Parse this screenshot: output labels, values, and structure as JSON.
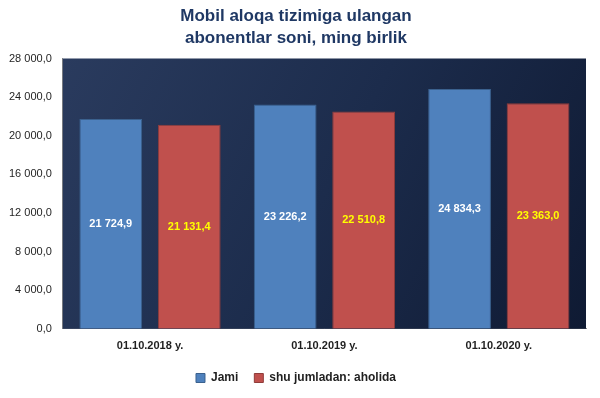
{
  "chart_data": {
    "type": "bar",
    "title": "Mobil aloqa tizimiga ulangan abonentlar soni, ming birlik",
    "categories": [
      "01.10.2018 y.",
      "01.10.2019 y.",
      "01.10.2020 y."
    ],
    "series": [
      {
        "name": "Jami",
        "color": "#4f81bd",
        "values": [
          21724.9,
          23226.2,
          24834.3
        ],
        "value_labels": [
          "21 724,9",
          "23 226,2",
          "24 834,3"
        ]
      },
      {
        "name": "shu jumladan: aholida",
        "color": "#c0504d",
        "values": [
          21131.4,
          22510.8,
          23363.0
        ],
        "value_labels": [
          "21 131,4",
          "22 510,8",
          "23 363,0"
        ]
      }
    ],
    "ylim": [
      0,
      28000
    ],
    "yticks": [
      {
        "value": 0,
        "label": "0,0"
      },
      {
        "value": 4000,
        "label": "4 000,0"
      },
      {
        "value": 8000,
        "label": "8 000,0"
      },
      {
        "value": 12000,
        "label": "12 000,0"
      },
      {
        "value": 16000,
        "label": "16 000,0"
      },
      {
        "value": 20000,
        "label": "20 000,0"
      },
      {
        "value": 24000,
        "label": "24 000,0"
      },
      {
        "value": 28000,
        "label": "28 000,0"
      }
    ],
    "grid": false,
    "legend": "bottom",
    "data_labels": true
  }
}
